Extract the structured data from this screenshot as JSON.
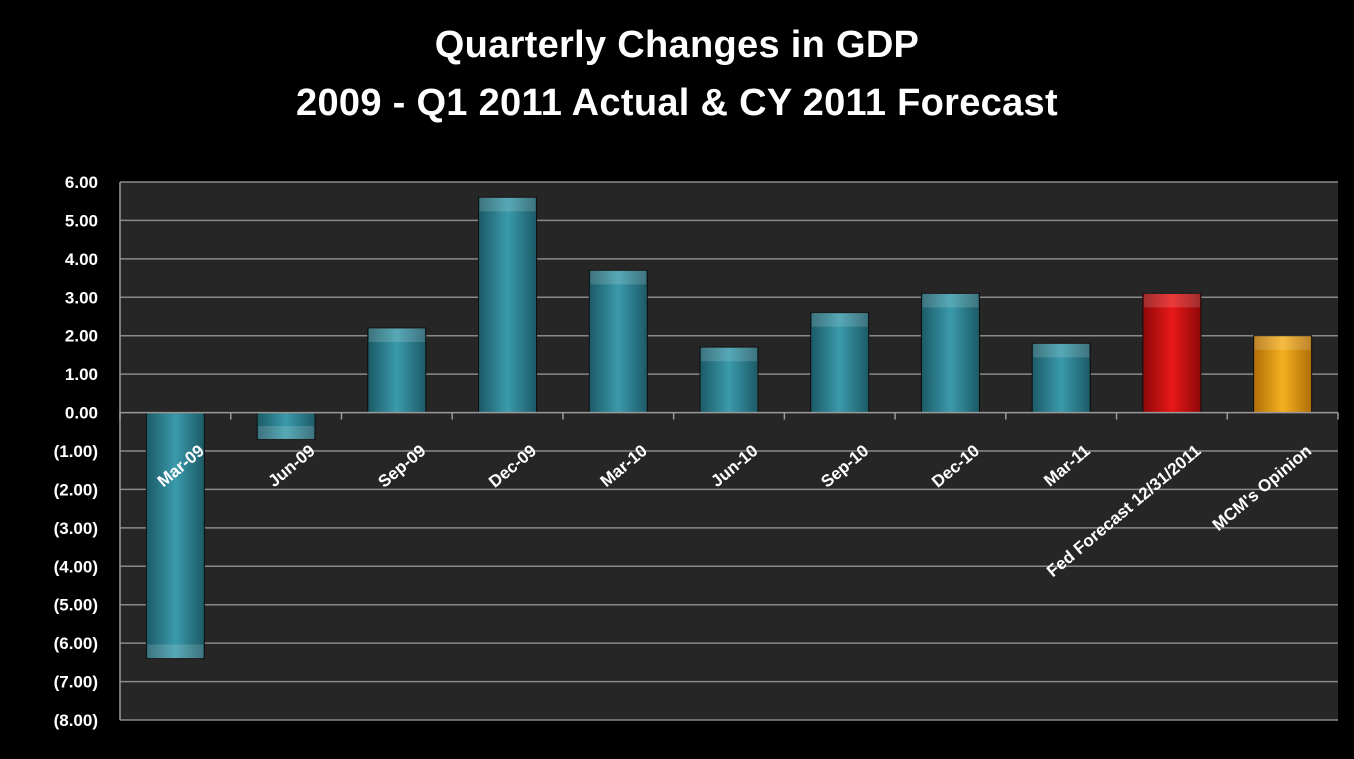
{
  "chart_data": {
    "type": "bar",
    "title": "Quarterly Changes in GDP",
    "subtitle": "2009 - Q1 2011 Actual &  CY 2011 Forecast",
    "xlabel": "",
    "ylabel": "",
    "categories": [
      "Mar-09",
      "Jun-09",
      "Sep-09",
      "Dec-09",
      "Mar-10",
      "Jun-10",
      "Sep-10",
      "Dec-10",
      "Mar-11",
      "Fed Forecast 12/31/2011",
      "MCM's Opinion"
    ],
    "values": [
      -6.4,
      -0.7,
      2.2,
      5.6,
      3.7,
      1.7,
      2.6,
      3.1,
      1.8,
      3.1,
      2.0
    ],
    "bar_colors": [
      "#2a7f90",
      "#2a7f90",
      "#2a7f90",
      "#2a7f90",
      "#2a7f90",
      "#2a7f90",
      "#2a7f90",
      "#2a7f90",
      "#2a7f90",
      "#cc1010",
      "#e59b10"
    ],
    "ylim": [
      -8,
      6
    ],
    "ytick_values": [
      6,
      5,
      4,
      3,
      2,
      1,
      0,
      -1,
      -2,
      -3,
      -4,
      -5,
      -6,
      -7,
      -8
    ],
    "ytick_labels": [
      "6.00",
      "5.00",
      "4.00",
      "3.00",
      "2.00",
      "1.00",
      "0.00",
      "(1.00)",
      "(2.00)",
      "(3.00)",
      "(4.00)",
      "(5.00)",
      "(6.00)",
      "(7.00)",
      "(8.00)"
    ],
    "grid": true,
    "legend": "none",
    "colors": {
      "background": "#000000",
      "plot_area": "#262626",
      "gridline": "#8a8a8a",
      "text": "#ffffff"
    }
  }
}
